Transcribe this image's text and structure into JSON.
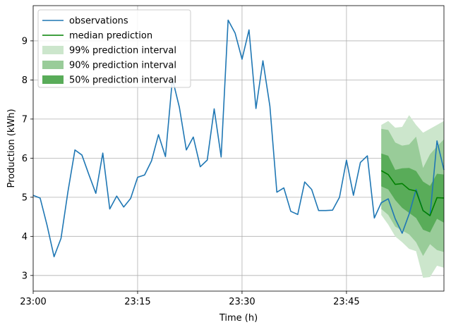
{
  "chart_data": {
    "type": "line",
    "xlabel": "Time (h)",
    "ylabel": "Production (kWh)",
    "x_start": "23:00",
    "x_ticks": [
      "23:00",
      "23:15",
      "23:30",
      "23:45"
    ],
    "x_tick_minutes": [
      0,
      15,
      30,
      45
    ],
    "xlim_minutes": [
      0,
      59
    ],
    "ylim": [
      2.6,
      9.9
    ],
    "y_ticks": [
      3,
      4,
      5,
      6,
      7,
      8,
      9
    ],
    "grid": true,
    "legend_position": "top-left",
    "legend": [
      {
        "label": "observations",
        "kind": "line",
        "color": "#1f77b4"
      },
      {
        "label": "median prediction",
        "kind": "line",
        "color": "#008000"
      },
      {
        "label": "99% prediction interval",
        "kind": "patch",
        "color": "#cce6cc"
      },
      {
        "label": "90% prediction interval",
        "kind": "patch",
        "color": "#99cc99"
      },
      {
        "label": "50% prediction interval",
        "kind": "patch",
        "color": "#59ac59"
      }
    ],
    "observations": {
      "color": "#1f77b4",
      "minutes": [
        0,
        1,
        2,
        3,
        4,
        5,
        6,
        7,
        8,
        9,
        10,
        11,
        12,
        13,
        14,
        15,
        16,
        17,
        18,
        19,
        20,
        21,
        22,
        23,
        24,
        25,
        26,
        27,
        28,
        29,
        30,
        31,
        32,
        33,
        34,
        35,
        36,
        37,
        38,
        39,
        40,
        41,
        42,
        43,
        44,
        45,
        46,
        47,
        48,
        49,
        50,
        51,
        52,
        53,
        54,
        55,
        56,
        57,
        58,
        59
      ],
      "values": [
        5.05,
        4.98,
        4.28,
        3.48,
        3.95,
        5.15,
        6.21,
        6.08,
        5.58,
        5.1,
        6.13,
        4.7,
        5.03,
        4.75,
        4.97,
        5.51,
        5.57,
        5.93,
        6.6,
        6.04,
        8.03,
        7.3,
        6.21,
        6.54,
        5.78,
        5.95,
        7.26,
        6.03,
        9.53,
        9.2,
        8.53,
        9.28,
        7.27,
        8.49,
        7.33,
        5.13,
        5.24,
        4.64,
        4.56,
        5.39,
        5.2,
        4.66,
        4.66,
        4.67,
        5.0,
        5.95,
        5.05,
        5.89,
        6.06,
        4.47,
        4.86,
        4.96,
        4.45,
        4.08,
        4.57,
        5.2,
        4.66,
        4.53,
        6.44,
        5.7
      ]
    },
    "prediction": {
      "minutes": [
        50,
        51,
        52,
        53,
        54,
        55,
        56,
        57,
        58,
        59
      ],
      "median": [
        5.68,
        5.58,
        5.33,
        5.35,
        5.2,
        5.16,
        4.66,
        4.53,
        4.99,
        4.98
      ],
      "median_color": "#008000",
      "intervals": [
        {
          "label": "99% prediction interval",
          "color": "#cce6cc",
          "lower": [
            4.55,
            4.3,
            4.0,
            3.85,
            3.68,
            3.62,
            2.94,
            2.96,
            3.25,
            3.2
          ],
          "upper": [
            6.85,
            6.95,
            6.78,
            6.8,
            7.1,
            6.85,
            6.65,
            6.75,
            6.85,
            6.95
          ]
        },
        {
          "label": "90% prediction interval",
          "color": "#99cc99",
          "lower": [
            4.7,
            4.55,
            4.25,
            4.15,
            4.05,
            3.85,
            3.5,
            3.8,
            3.65,
            3.6
          ],
          "upper": [
            6.75,
            6.72,
            6.4,
            6.32,
            6.35,
            6.55,
            5.75,
            6.1,
            6.3,
            6.48
          ]
        },
        {
          "label": "50% prediction interval",
          "color": "#59ac59",
          "lower": [
            5.28,
            5.2,
            4.93,
            4.73,
            4.6,
            4.47,
            4.17,
            4.1,
            4.45,
            4.35
          ],
          "upper": [
            6.12,
            6.06,
            5.7,
            5.74,
            5.75,
            5.67,
            5.4,
            5.29,
            5.6,
            5.58
          ]
        }
      ]
    }
  }
}
